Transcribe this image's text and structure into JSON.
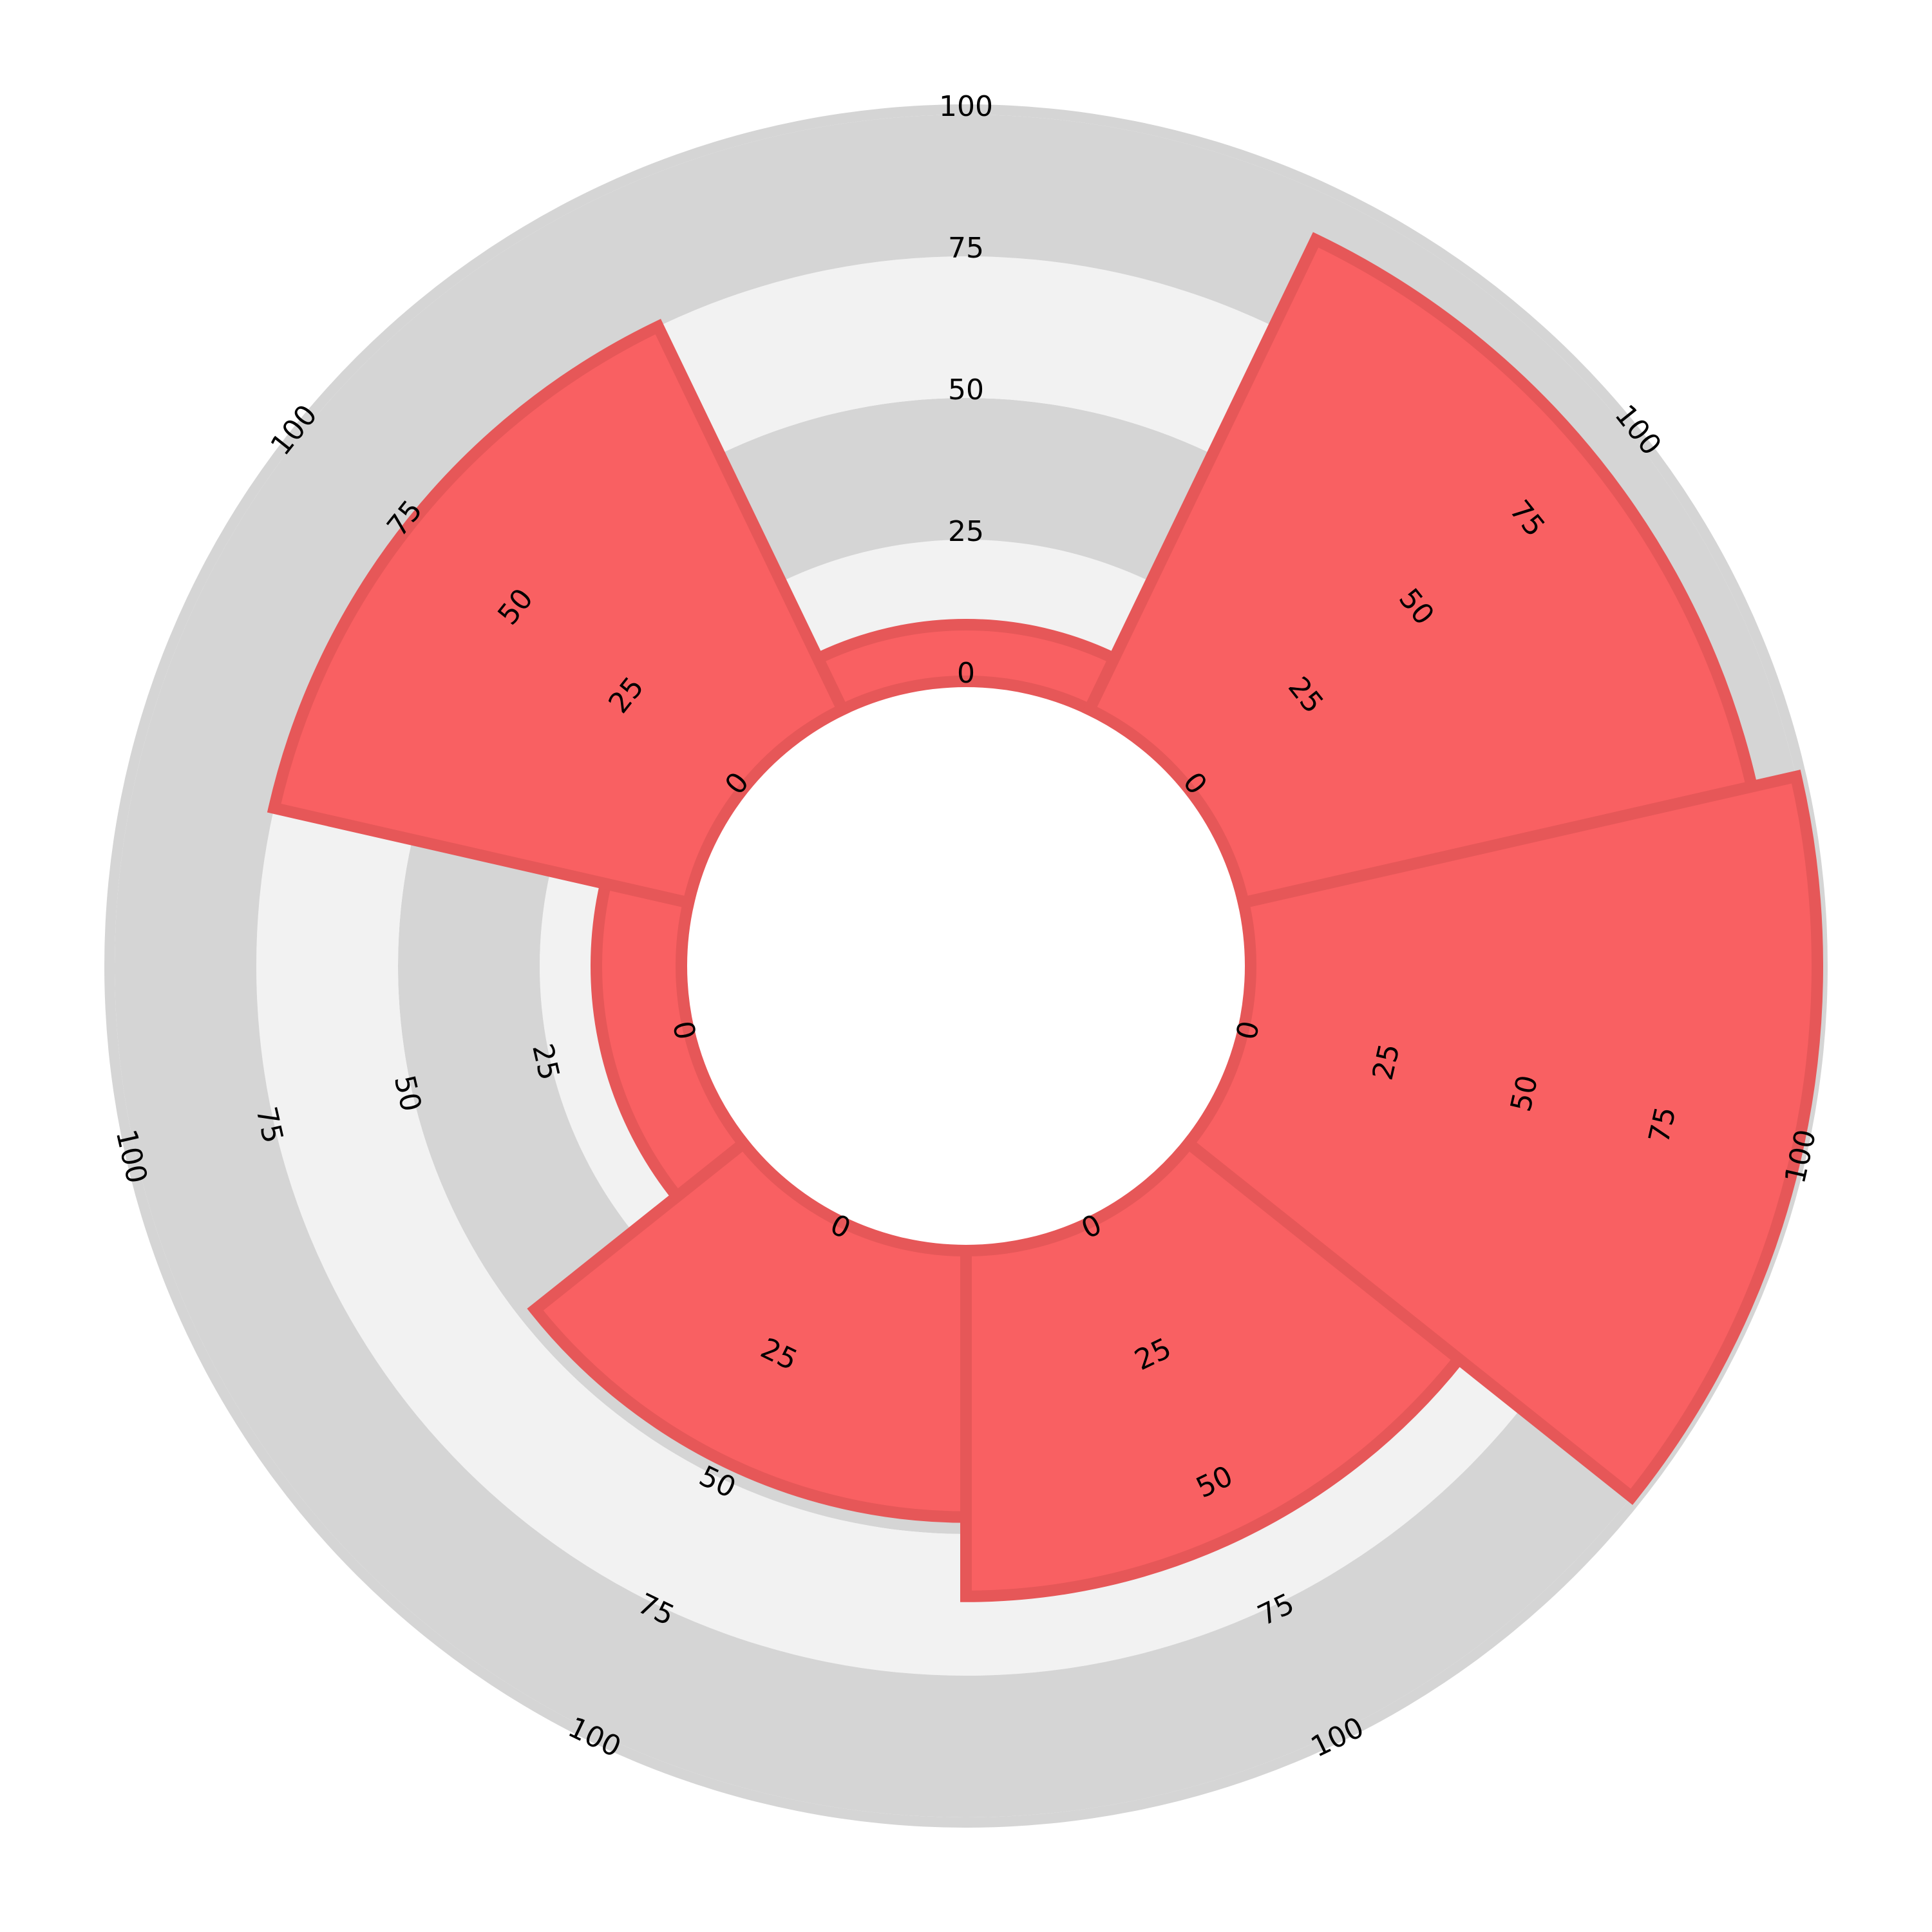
{
  "chart_data": {
    "type": "pizza",
    "title": "",
    "slices": 7,
    "start_angle_deg": 90,
    "direction": "clockwise",
    "values": [
      10,
      92,
      100,
      61,
      47,
      15,
      75
    ],
    "radial_range": [
      0,
      100
    ],
    "ring_ticks": [
      "0",
      "25",
      "50",
      "75",
      "100"
    ],
    "ring_tick_values": [
      0,
      25,
      50,
      75,
      100
    ],
    "colors": {
      "slice_fill": "#f96062",
      "slice_edge": "#e65758",
      "ring_light": "#f2f2f2",
      "ring_dark": "#d5d5d5",
      "background": "#ffffff",
      "tick_text": "#000000"
    }
  }
}
